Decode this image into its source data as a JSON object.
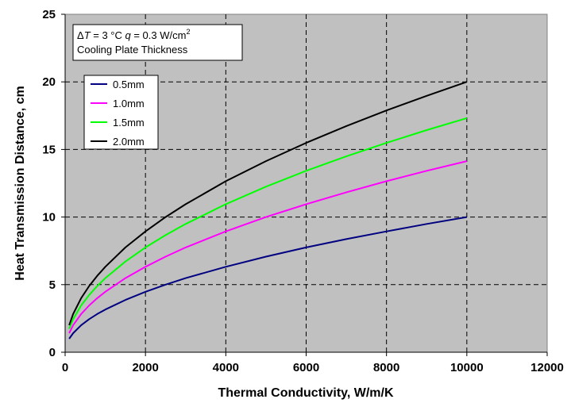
{
  "chart_data": {
    "type": "line",
    "xlabel": "Thermal Conductivity, W/m/K",
    "ylabel": "Heat Transmission Distance, cm",
    "xlim": [
      0,
      12000
    ],
    "ylim": [
      0,
      25
    ],
    "x_ticks": [
      "0",
      "2000",
      "4000",
      "6000",
      "8000",
      "10000",
      "12000"
    ],
    "y_ticks": [
      "0",
      "5",
      "10",
      "15",
      "20",
      "25"
    ],
    "grid": true,
    "legend_position": "top-left",
    "annotation": {
      "delta": "Δ",
      "T": "T",
      "t_value": " = 3 °C  ",
      "q": "q",
      "q_value": " = 0.3 W/cm",
      "q_exp": "2",
      "line2": "Cooling Plate Thickness"
    },
    "x": [
      100,
      200,
      400,
      600,
      800,
      1000,
      1500,
      2000,
      2500,
      3000,
      4000,
      5000,
      6000,
      7000,
      8000,
      9000,
      10000
    ],
    "series": [
      {
        "name": "0.5mm",
        "color": "#000080",
        "values": [
          1.0,
          1.41,
          2.0,
          2.45,
          2.83,
          3.16,
          3.87,
          4.47,
          5.0,
          5.48,
          6.32,
          7.07,
          7.75,
          8.37,
          8.94,
          9.49,
          10.0
        ]
      },
      {
        "name": "1.0mm",
        "color": "#ff00ff",
        "values": [
          1.41,
          2.0,
          2.83,
          3.46,
          4.0,
          4.47,
          5.48,
          6.32,
          7.07,
          7.75,
          8.94,
          10.0,
          10.95,
          11.83,
          12.65,
          13.42,
          14.14
        ]
      },
      {
        "name": "1.5mm",
        "color": "#00ff00",
        "values": [
          1.73,
          2.45,
          3.46,
          4.24,
          4.9,
          5.48,
          6.71,
          7.75,
          8.66,
          9.49,
          10.95,
          12.25,
          13.42,
          14.49,
          15.49,
          16.43,
          17.32
        ]
      },
      {
        "name": "2.0mm",
        "color": "#000000",
        "values": [
          2.0,
          2.83,
          4.0,
          4.9,
          5.66,
          6.32,
          7.75,
          8.94,
          10.0,
          10.95,
          12.65,
          14.14,
          15.49,
          16.73,
          17.89,
          18.97,
          20.0
        ]
      }
    ]
  }
}
